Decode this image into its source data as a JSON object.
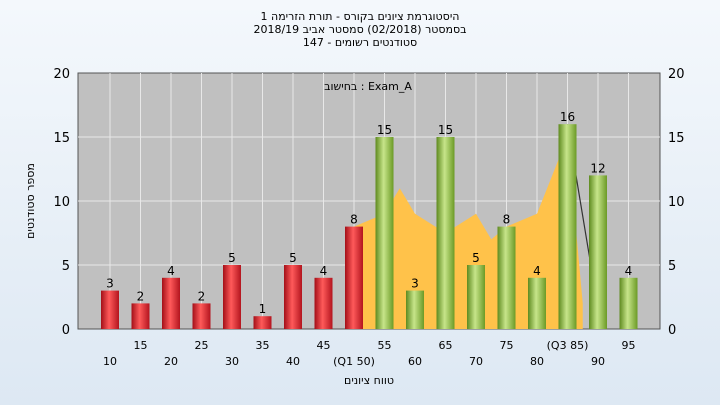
{
  "chart_data": {
    "type": "bar",
    "title_lines": [
      "היסטוגרמת ציונים בקורס - תורת הזרימה 1",
      "בסמסטר  (02/2018)  סמסטר אביב 2018/19",
      "סטודנטים רשומים - 147"
    ],
    "annotation": "בחישוב : Exam_A",
    "ylabel": "מספר סטודנטים",
    "xlabel": "טווח ציונים",
    "ylim": [
      0,
      20
    ],
    "yticks": [
      0,
      5,
      10,
      15,
      20
    ],
    "categories": [
      "10",
      "15",
      "20",
      "25",
      "30",
      "35",
      "40",
      "45",
      "(Q1 50)",
      "55",
      "60",
      "65",
      "70",
      "75",
      "80",
      "(Q3 85)",
      "90",
      "95"
    ],
    "values": [
      3,
      2,
      4,
      2,
      5,
      1,
      5,
      4,
      8,
      15,
      3,
      15,
      5,
      8,
      4,
      16,
      12,
      4
    ],
    "bar_colors": [
      "red",
      "red",
      "red",
      "red",
      "red",
      "red",
      "red",
      "red",
      "red",
      "green",
      "green",
      "green",
      "green",
      "green",
      "green",
      "green",
      "green",
      "green"
    ],
    "area_series": [
      {
        "x": "50",
        "y": 8
      },
      {
        "x": "55",
        "y": 9
      },
      {
        "x": "57.5",
        "y": 11
      },
      {
        "x": "60",
        "y": 9
      },
      {
        "x": "65",
        "y": 7.5
      },
      {
        "x": "70",
        "y": 9
      },
      {
        "x": "72.5",
        "y": 7
      },
      {
        "x": "75",
        "y": 8
      },
      {
        "x": "80",
        "y": 9
      },
      {
        "x": "85",
        "y": 15
      },
      {
        "x": "87.5",
        "y": 2
      }
    ],
    "grid": true,
    "colors": {
      "plot_bg": "#c0c0c0",
      "grid": "#e8e8e8",
      "red_bar": "#e0202c",
      "green_bar": "#8cbf3a",
      "area": "#ffc24a"
    }
  }
}
